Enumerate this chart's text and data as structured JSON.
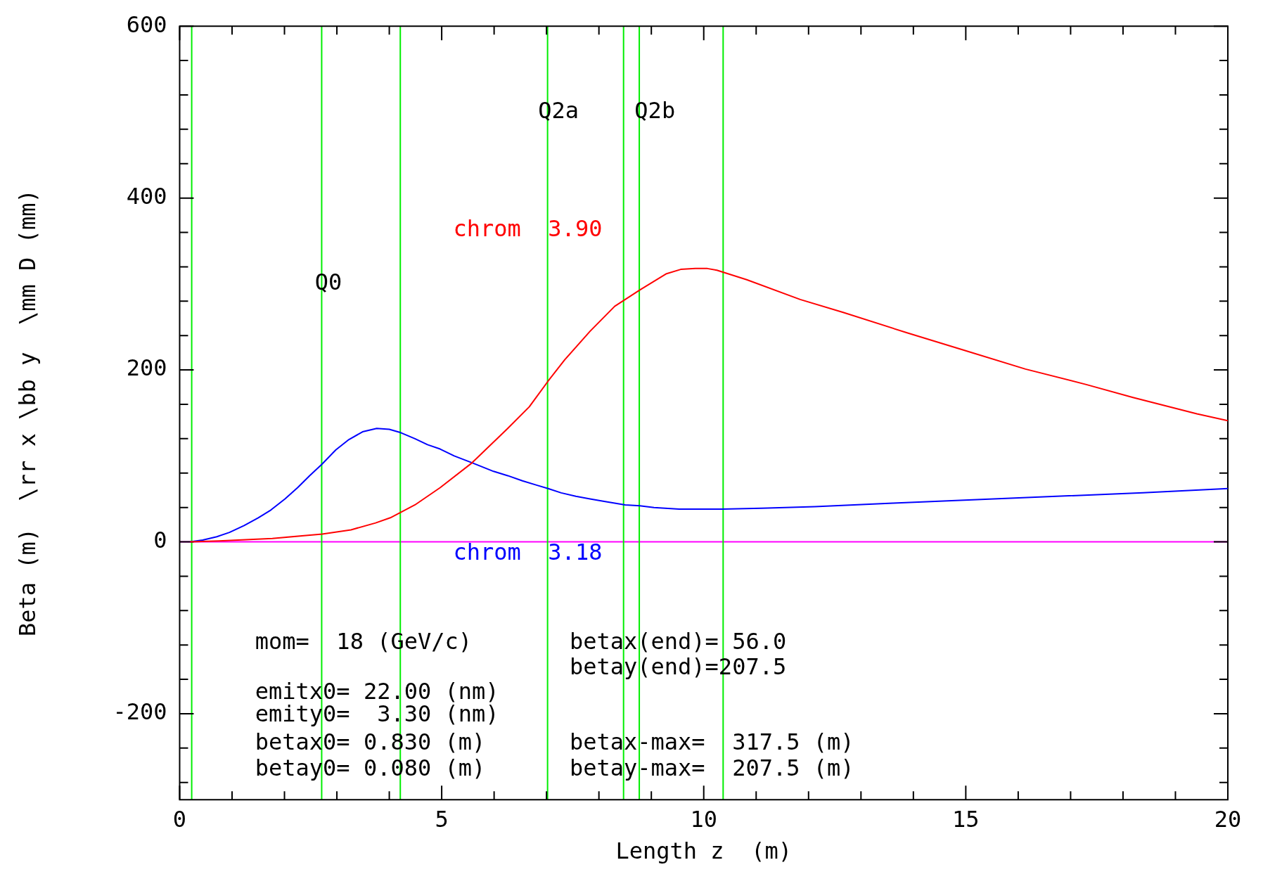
{
  "chart_data": {
    "type": "line",
    "xlabel": "Length z  (m)",
    "ylabel": "Beta (m)  \\rr x \\bb y  \\mm D (mm)",
    "xlim": [
      0,
      20
    ],
    "ylim": [
      -300,
      600
    ],
    "marker": "none",
    "line_style": "solid",
    "xticks": [
      0,
      {
        "value": 1,
        "label": null
      },
      {
        "value": 2,
        "label": null
      },
      {
        "value": 3,
        "label": null
      },
      {
        "value": 4,
        "label": null
      },
      5,
      {
        "value": 6,
        "label": null
      },
      {
        "value": 7,
        "label": null
      },
      {
        "value": 8,
        "label": null
      },
      {
        "value": 9,
        "label": null
      },
      10,
      {
        "value": 11,
        "label": null
      },
      {
        "value": 12,
        "label": null
      },
      {
        "value": 13,
        "label": null
      },
      {
        "value": 14,
        "label": null
      },
      15,
      {
        "value": 16,
        "label": null
      },
      {
        "value": 17,
        "label": null
      },
      {
        "value": 18,
        "label": null
      },
      {
        "value": 19,
        "label": null
      },
      20
    ],
    "yticks": [
      {
        "value": -280,
        "label": null
      },
      {
        "value": -240,
        "label": null
      },
      -200,
      {
        "value": -160,
        "label": null
      },
      {
        "value": -120,
        "label": null
      },
      {
        "value": -80,
        "label": null
      },
      {
        "value": -40,
        "label": null
      },
      0,
      {
        "value": 40,
        "label": null
      },
      {
        "value": 80,
        "label": null
      },
      {
        "value": 120,
        "label": null
      },
      {
        "value": 160,
        "label": null
      },
      200,
      {
        "value": 240,
        "label": null
      },
      {
        "value": 280,
        "label": null
      },
      {
        "value": 320,
        "label": null
      },
      {
        "value": 360,
        "label": null
      },
      400,
      {
        "value": 440,
        "label": null
      },
      {
        "value": 480,
        "label": null
      },
      {
        "value": 520,
        "label": null
      },
      {
        "value": 560,
        "label": null
      },
      600
    ],
    "series": [
      {
        "name": "chrom  3.90",
        "color": "#ff0000",
        "x": [
          0.2,
          0.75,
          1.77,
          2.72,
          3.27,
          3.74,
          4.02,
          4.49,
          4.97,
          5.58,
          6.26,
          6.67,
          7.03,
          7.35,
          7.83,
          8.3,
          8.78,
          9.29,
          9.56,
          9.84,
          10.07,
          10.25,
          10.82,
          11.84,
          12.66,
          13.89,
          14.91,
          16.14,
          17.3,
          18.19,
          19.41,
          20
        ],
        "values": [
          0,
          1,
          4,
          9,
          14,
          22,
          28,
          43,
          63,
          92,
          132,
          157,
          187,
          212,
          245,
          274,
          293,
          312,
          317,
          318,
          318,
          316,
          305,
          282,
          267,
          243,
          224,
          201,
          183,
          168,
          149,
          141
        ]
      },
      {
        "name": "chrom  3.18",
        "color": "#0000ff",
        "x": [
          0.2,
          0.44,
          0.71,
          0.95,
          1.23,
          1.5,
          1.74,
          2.01,
          2.25,
          2.48,
          2.71,
          2.98,
          3.23,
          3.49,
          3.76,
          4,
          4.22,
          4.49,
          4.73,
          4.97,
          5.24,
          5.58,
          5.99,
          6.26,
          6.54,
          6.81,
          7.03,
          7.28,
          7.56,
          7.83,
          8.1,
          8.5,
          8.78,
          9.05,
          9.53,
          10.07,
          10.35,
          11.1,
          12.12,
          13.61,
          15.93,
          18.38,
          20
        ],
        "values": [
          0,
          2,
          6,
          11,
          19,
          28,
          37,
          50,
          63,
          77,
          90,
          107,
          119,
          128,
          132,
          131,
          127,
          120,
          113,
          108,
          100,
          92,
          82,
          77,
          71,
          66,
          62,
          57,
          53,
          50,
          47,
          43,
          42,
          40,
          38,
          38,
          38,
          39,
          41,
          45,
          51,
          57,
          62
        ]
      }
    ],
    "ref_lines": [
      {
        "axis": "y",
        "value": 0,
        "color": "#ff00ff"
      },
      {
        "axis": "x",
        "value": 0.23,
        "color": "#00ee00"
      },
      {
        "axis": "x",
        "value": 2.71,
        "color": "#00ee00"
      },
      {
        "axis": "x",
        "value": 4.21,
        "color": "#00ee00"
      },
      {
        "axis": "x",
        "value": 7.02,
        "color": "#00ee00"
      },
      {
        "axis": "x",
        "value": 8.47,
        "color": "#00ee00"
      },
      {
        "axis": "x",
        "value": 8.77,
        "color": "#00ee00"
      },
      {
        "axis": "x",
        "value": 10.37,
        "color": "#00ee00"
      }
    ],
    "annotations": [
      "Q0",
      "Q2a",
      "Q2b",
      "mom=  18 (GeV/c)",
      "betax(end)= 56.0",
      "betay(end)=207.5",
      "emitx0= 22.00 (nm)",
      "emity0=  3.30 (nm)",
      "betax0= 0.830 (m)",
      "betax-max=  317.5 (m)",
      "betay0= 0.080 (m)",
      "betay-max=  207.5 (m)"
    ]
  }
}
